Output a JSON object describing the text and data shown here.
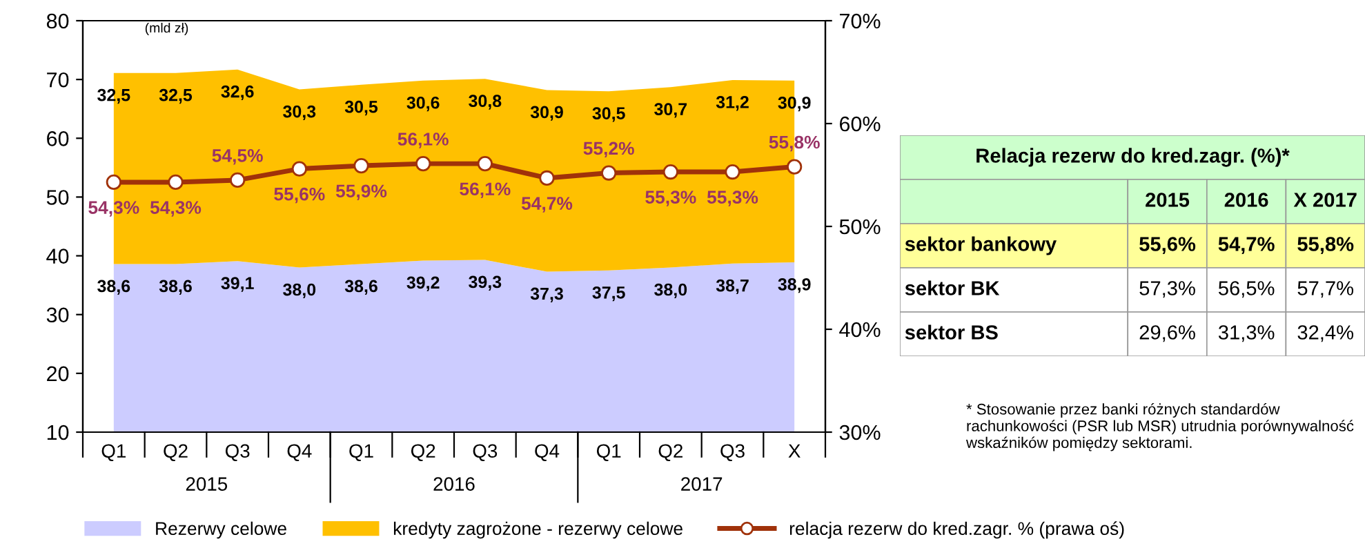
{
  "chart_data": [
    {
      "type": "area",
      "stacked": true,
      "categories": [
        "Q1",
        "Q2",
        "Q3",
        "Q4",
        "Q1",
        "Q2",
        "Q3",
        "Q4",
        "Q1",
        "Q2",
        "Q3",
        "X"
      ],
      "series": [
        {
          "name": "Rezerwy celowe",
          "color": "#ccccff",
          "values": [
            38.6,
            38.6,
            39.1,
            38.0,
            38.6,
            39.2,
            39.3,
            37.3,
            37.5,
            38.0,
            38.7,
            38.9
          ],
          "value_labels": [
            "38,6",
            "38,6",
            "39,1",
            "38,0",
            "38,6",
            "39,2",
            "39,3",
            "37,3",
            "37,5",
            "38,0",
            "38,7",
            "38,9"
          ]
        },
        {
          "name": "kredyty zagrożone - rezerwy celowe",
          "color": "#ffc000",
          "values": [
            32.5,
            32.5,
            32.6,
            30.3,
            30.5,
            30.6,
            30.8,
            30.9,
            30.5,
            30.7,
            31.2,
            30.9
          ],
          "value_labels": [
            "32,5",
            "32,5",
            "32,6",
            "30,3",
            "30,5",
            "30,6",
            "30,8",
            "30,9",
            "30,5",
            "30,7",
            "31,2",
            "30,9"
          ]
        },
        {
          "name": "relacja rezerw do kred.zagr. % (prawa oś)",
          "type": "line",
          "axis": "y2",
          "color": "#a0320a",
          "marker": "circle",
          "values": [
            54.3,
            54.3,
            54.5,
            55.6,
            55.9,
            56.1,
            56.1,
            54.7,
            55.2,
            55.3,
            55.3,
            55.8
          ],
          "value_labels": [
            "54,3%",
            "54,3%",
            "54,5%",
            "55,6%",
            "55,9%",
            "56,1%",
            "56,1%",
            "54,7%",
            "55,2%",
            "55,3%",
            "55,3%",
            "55,8%"
          ]
        }
      ],
      "ylim": [
        10,
        80
      ],
      "yticks": [
        10,
        20,
        30,
        40,
        50,
        60,
        70,
        80
      ],
      "y2lim": [
        30,
        70
      ],
      "y2ticks": [
        {
          "value": 30,
          "label": "30%"
        },
        {
          "value": 40,
          "label": "40%"
        },
        {
          "value": 50,
          "label": "50%"
        },
        {
          "value": 60,
          "label": "60%"
        },
        {
          "value": 70,
          "label": "70%"
        }
      ],
      "annotations": [
        "(mld zł)",
        "2015",
        "2016",
        "2017"
      ],
      "legend": "bottom",
      "grid": false
    },
    {
      "type": "other",
      "title": "Relacja rezerw do kred.zagr. (%)*",
      "categories": [
        "2015",
        "2016",
        "X 2017"
      ],
      "y_categories": [
        "sektor bankowy",
        "sektor BK",
        "sektor BS"
      ],
      "cell_labels": [
        [
          "55,6%",
          "54,7%",
          "55,8%"
        ],
        [
          "57,3%",
          "56,5%",
          "57,7%"
        ],
        [
          "29,6%",
          "31,3%",
          "32,4%"
        ]
      ],
      "annotations": [
        "* Stosowanie przez banki różnych standardów rachunkowości (PSR lub MSR) utrudnia porównywalność  wskaźników pomiędzy sektorami."
      ]
    }
  ]
}
